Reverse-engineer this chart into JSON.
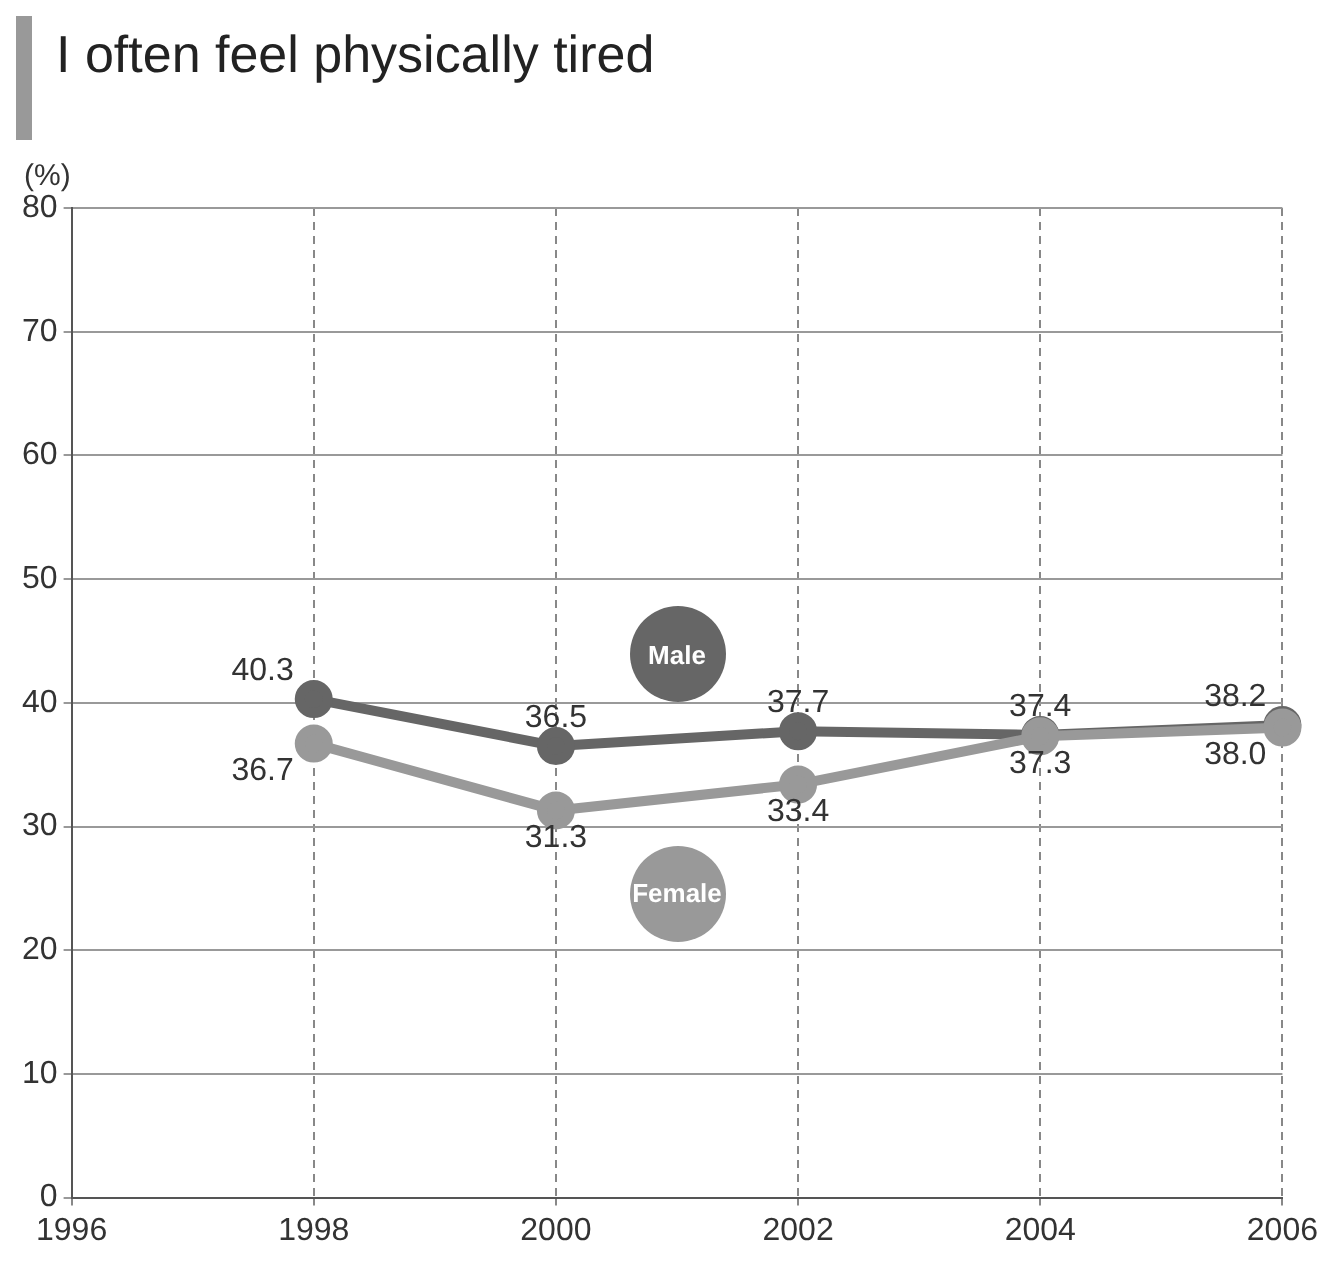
{
  "chart_data": {
    "type": "line",
    "title": "I often feel physically tired",
    "ylabel": "(%)",
    "x": [
      1998,
      2000,
      2002,
      2004,
      2006
    ],
    "series": [
      {
        "name": "Male",
        "color": "#666666",
        "values": [
          40.3,
          36.5,
          37.7,
          37.4,
          38.2
        ],
        "value_labels": [
          "40.3",
          "36.5",
          "37.7",
          "37.4",
          "38.2"
        ]
      },
      {
        "name": "Female",
        "color": "#999999",
        "values": [
          36.7,
          31.3,
          33.4,
          37.3,
          38.0
        ],
        "value_labels": [
          "36.7",
          "31.3",
          "33.4",
          "37.3",
          "38.0"
        ]
      }
    ],
    "xlim": [
      1996,
      2006
    ],
    "xticks": [
      1996,
      1998,
      2000,
      2002,
      2004,
      2006
    ],
    "ylim": [
      0,
      80
    ],
    "yticks": [
      0,
      10,
      20,
      30,
      40,
      50,
      60,
      70,
      80
    ],
    "grid": true,
    "marker": "circle",
    "line_style": "solid",
    "legend": false
  }
}
